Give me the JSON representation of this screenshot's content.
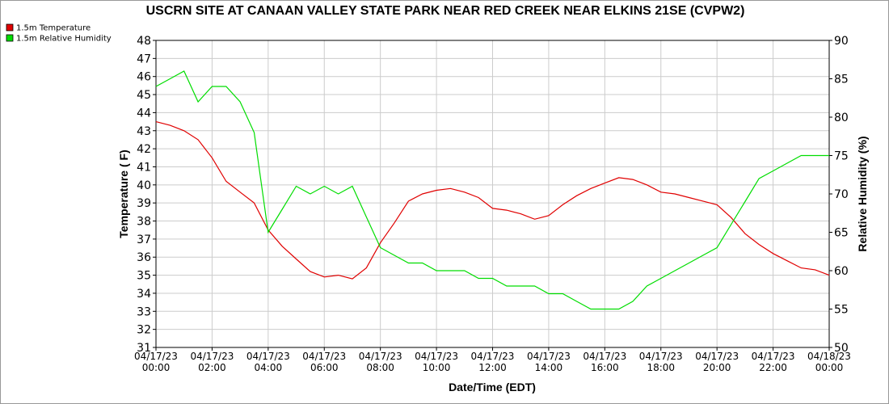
{
  "chart_data": {
    "type": "line",
    "title": "USCRN SITE AT CANAAN VALLEY STATE PARK NEAR RED CREEK NEAR ELKINS 21SE (CVPW2)",
    "xlabel": "Date/Time (EDT)",
    "ylabel": "Temperature ( F)",
    "y2label": "Relative Humidity (%)",
    "ylim": [
      31,
      48
    ],
    "y2lim": [
      50,
      90
    ],
    "xlim": [
      "04/17/23 00:00",
      "04/18/23 00:00"
    ],
    "grid": true,
    "legend_position": "top-left",
    "x_ticks": [
      {
        "date": "04/17/23",
        "time": "00:00"
      },
      {
        "date": "04/17/23",
        "time": "02:00"
      },
      {
        "date": "04/17/23",
        "time": "04:00"
      },
      {
        "date": "04/17/23",
        "time": "06:00"
      },
      {
        "date": "04/17/23",
        "time": "08:00"
      },
      {
        "date": "04/17/23",
        "time": "10:00"
      },
      {
        "date": "04/17/23",
        "time": "12:00"
      },
      {
        "date": "04/17/23",
        "time": "14:00"
      },
      {
        "date": "04/17/23",
        "time": "16:00"
      },
      {
        "date": "04/17/23",
        "time": "18:00"
      },
      {
        "date": "04/17/23",
        "time": "20:00"
      },
      {
        "date": "04/17/23",
        "time": "22:00"
      },
      {
        "date": "04/18/23",
        "time": "00:00"
      }
    ],
    "y_ticks": [
      "31",
      "32",
      "33",
      "34",
      "35",
      "36",
      "37",
      "38",
      "39",
      "40",
      "41",
      "42",
      "43",
      "44",
      "45",
      "46",
      "47",
      "48"
    ],
    "y2_ticks": [
      "50",
      "55",
      "60",
      "65",
      "70",
      "75",
      "80",
      "85",
      "90"
    ],
    "series": [
      {
        "name": "1.5m Temperature",
        "color": "#e00000",
        "axis": "left",
        "x": [
          "04/17/23 00:00",
          "04/17/23 00:30",
          "04/17/23 01:00",
          "04/17/23 01:30",
          "04/17/23 02:00",
          "04/17/23 02:30",
          "04/17/23 03:00",
          "04/17/23 03:30",
          "04/17/23 04:00",
          "04/17/23 04:30",
          "04/17/23 05:00",
          "04/17/23 05:30",
          "04/17/23 06:00",
          "04/17/23 06:30",
          "04/17/23 07:00",
          "04/17/23 07:30",
          "04/17/23 08:00",
          "04/17/23 08:30",
          "04/17/23 09:00",
          "04/17/23 09:30",
          "04/17/23 10:00",
          "04/17/23 10:30",
          "04/17/23 11:00",
          "04/17/23 11:30",
          "04/17/23 12:00",
          "04/17/23 12:30",
          "04/17/23 13:00",
          "04/17/23 13:30",
          "04/17/23 14:00",
          "04/17/23 14:30",
          "04/17/23 15:00",
          "04/17/23 15:30",
          "04/17/23 16:00",
          "04/17/23 16:30",
          "04/17/23 17:00",
          "04/17/23 17:30",
          "04/17/23 18:00",
          "04/17/23 18:30",
          "04/17/23 19:00",
          "04/17/23 19:30",
          "04/17/23 20:00",
          "04/17/23 20:30",
          "04/17/23 21:00",
          "04/17/23 21:30",
          "04/17/23 22:00",
          "04/17/23 22:30",
          "04/17/23 23:00",
          "04/17/23 23:30",
          "04/18/23 00:00"
        ],
        "values": [
          43.5,
          43.3,
          43.0,
          42.5,
          41.5,
          40.2,
          39.6,
          39.0,
          37.5,
          36.6,
          35.9,
          35.2,
          34.9,
          35.0,
          34.8,
          35.4,
          36.8,
          37.9,
          39.1,
          39.5,
          39.7,
          39.8,
          39.6,
          39.3,
          38.7,
          38.6,
          38.4,
          38.1,
          38.3,
          38.9,
          39.4,
          39.8,
          40.1,
          40.4,
          40.3,
          40.0,
          39.6,
          39.5,
          39.3,
          39.1,
          38.9,
          38.2,
          37.3,
          36.7,
          36.2,
          35.8,
          35.4,
          35.3,
          35.0
        ]
      },
      {
        "name": "1.5m Relative Humidity",
        "color": "#00dd00",
        "axis": "right",
        "x": [
          "04/17/23 00:00",
          "04/17/23 00:30",
          "04/17/23 01:00",
          "04/17/23 01:30",
          "04/17/23 02:00",
          "04/17/23 02:30",
          "04/17/23 03:00",
          "04/17/23 03:30",
          "04/17/23 04:00",
          "04/17/23 04:30",
          "04/17/23 05:00",
          "04/17/23 05:30",
          "04/17/23 06:00",
          "04/17/23 06:30",
          "04/17/23 07:00",
          "04/17/23 07:30",
          "04/17/23 08:00",
          "04/17/23 08:30",
          "04/17/23 09:00",
          "04/17/23 09:30",
          "04/17/23 10:00",
          "04/17/23 10:30",
          "04/17/23 11:00",
          "04/17/23 11:30",
          "04/17/23 12:00",
          "04/17/23 12:30",
          "04/17/23 13:00",
          "04/17/23 13:30",
          "04/17/23 14:00",
          "04/17/23 14:30",
          "04/17/23 15:00",
          "04/17/23 15:30",
          "04/17/23 16:00",
          "04/17/23 16:30",
          "04/17/23 17:00",
          "04/17/23 17:30",
          "04/17/23 18:00",
          "04/17/23 18:30",
          "04/17/23 19:00",
          "04/17/23 19:30",
          "04/17/23 20:00",
          "04/17/23 20:30",
          "04/17/23 21:00",
          "04/17/23 21:30",
          "04/17/23 22:00",
          "04/17/23 22:30",
          "04/17/23 23:00",
          "04/17/23 23:30",
          "04/18/23 00:00"
        ],
        "values": [
          84,
          85,
          86,
          82,
          84,
          84,
          82,
          78,
          65,
          68,
          71,
          70,
          71,
          70,
          71,
          67,
          63,
          62,
          61,
          61,
          60,
          60,
          60,
          59,
          59,
          58,
          58,
          58,
          57,
          57,
          56,
          55,
          55,
          55,
          56,
          58,
          59,
          60,
          61,
          62,
          63,
          66,
          69,
          72,
          73,
          74,
          75,
          75,
          75
        ]
      }
    ]
  }
}
